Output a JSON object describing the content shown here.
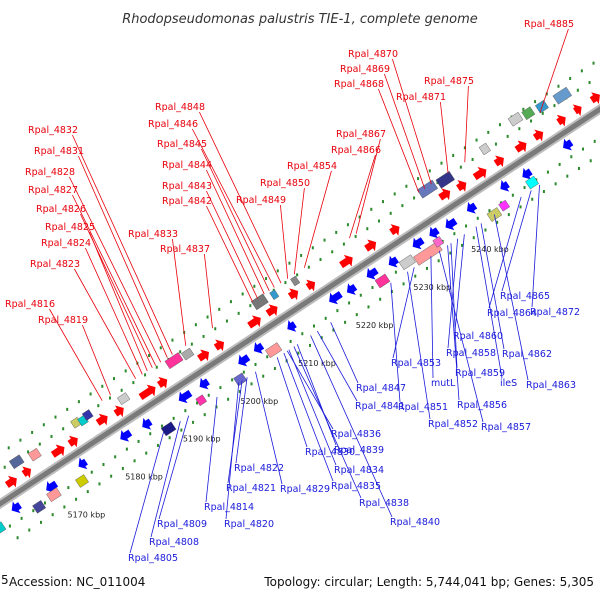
{
  "header": {
    "title": "Rhodopseudomonas palustris TIE-1, complete genome"
  },
  "footer": {
    "accession": "Accession: NC_011004",
    "topology": "Topology: circular; Length: 5,744,041 bp; Genes: 5,305",
    "edge_digit": "5"
  },
  "colors": {
    "forward_label": "#e8000b",
    "reverse_label": "#1a1adb",
    "backbone": "#888888",
    "forward_gene": "#ff0000",
    "reverse_gene": "#0000ff"
  },
  "axis": {
    "ticks": [
      {
        "label": "5170 kbp"
      },
      {
        "label": "5180 kbp"
      },
      {
        "label": "5190 kbp"
      },
      {
        "label": "5200 kbp"
      },
      {
        "label": "5210 kbp"
      },
      {
        "label": "5220 kbp"
      },
      {
        "label": "5230 kbp"
      },
      {
        "label": "5240 kbp"
      }
    ]
  },
  "forward_labels": [
    "Rpal_4885",
    "Rpal_4870",
    "Rpal_4869",
    "Rpal_4868",
    "Rpal_4875",
    "Rpal_4871",
    "Rpal_4848",
    "Rpal_4846",
    "Rpal_4845",
    "Rpal_4844",
    "Rpal_4843",
    "Rpal_4842",
    "Rpal_4867",
    "Rpal_4866",
    "Rpal_4854",
    "Rpal_4850",
    "Rpal_4849",
    "Rpal_4832",
    "Rpal_4831",
    "Rpal_4828",
    "Rpal_4827",
    "Rpal_4826",
    "Rpal_4825",
    "Rpal_4833",
    "Rpal_4824",
    "Rpal_4837",
    "Rpal_4823",
    "Rpal_4816",
    "Rpal_4819"
  ],
  "reverse_labels": [
    "Rpal_4865",
    "Rpal_4864",
    "Rpal_4872",
    "Rpal_4860",
    "Rpal_4858",
    "Rpal_4862",
    "Rpal_4853",
    "Rpal_4859",
    "Rpal_4863",
    "mutL",
    "ileS",
    "Rpal_4847",
    "Rpal_4856",
    "Rpal_4851",
    "Rpal_4841",
    "Rpal_4852",
    "Rpal_4857",
    "Rpal_4836",
    "Rpal_4839",
    "Rpal_4830",
    "Rpal_4834",
    "Rpal_4822",
    "Rpal_4835",
    "Rpal_4829",
    "Rpal_4821",
    "Rpal_4838",
    "Rpal_4814",
    "Rpal_4820",
    "Rpal_4840",
    "Rpal_4809",
    "Rpal_4808",
    "Rpal_4805"
  ]
}
